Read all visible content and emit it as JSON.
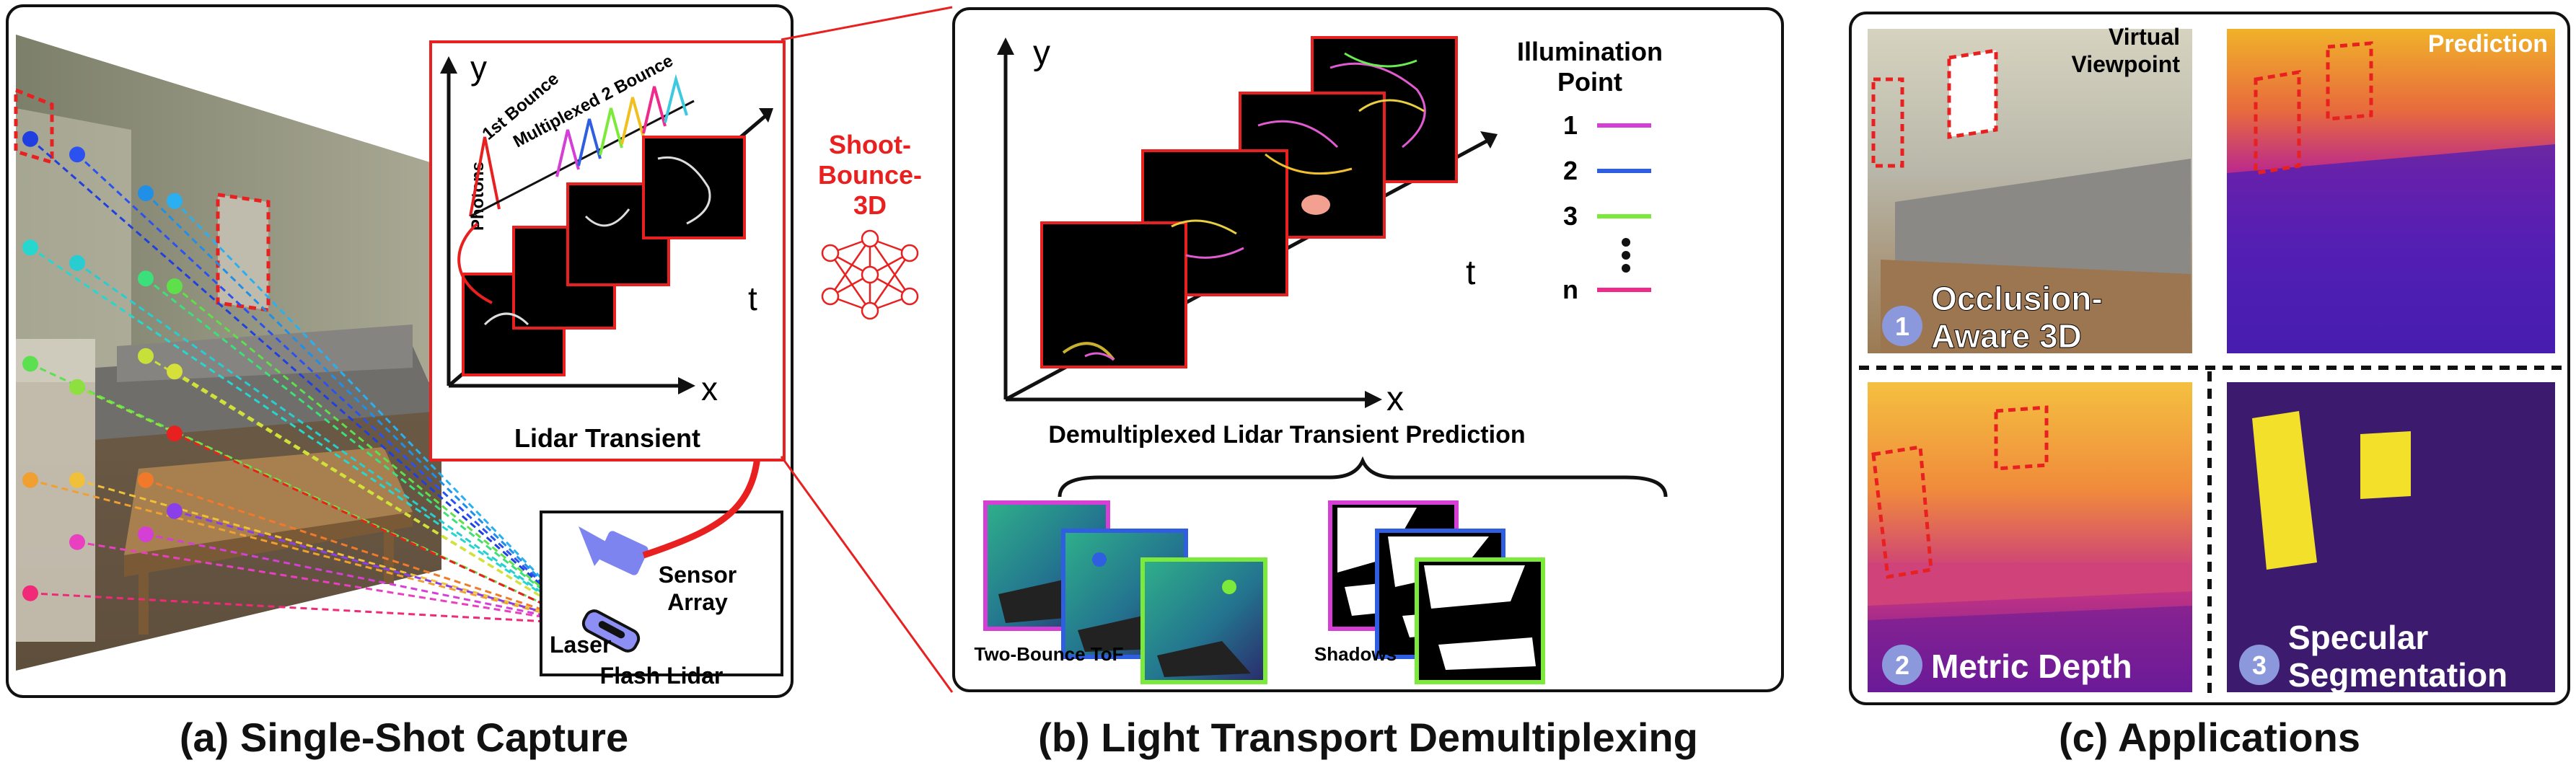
{
  "panel_a": {
    "caption": "(a) Single-Shot Capture",
    "transient_title": "Lidar Transient",
    "axis_y": "y",
    "axis_x": "x",
    "axis_t": "t",
    "photons_label": "Photons",
    "first_bounce": "1st Bounce",
    "multiplexed": "Multiplexed 2 Bounce",
    "flash_lidar": "Flash Lidar",
    "sensor_line1": "Sensor",
    "sensor_line2": "Array",
    "laser": "Laser"
  },
  "network": {
    "line1": "Shoot-",
    "line2": "Bounce-",
    "line3": "3D"
  },
  "panel_b": {
    "caption": "(b) Light Transport Demultiplexing",
    "axis_y": "y",
    "axis_x": "x",
    "axis_t": "t",
    "prediction_title": "Demultiplexed Lidar Transient Prediction",
    "legend_title_1": "Illumination",
    "legend_title_2": "Point",
    "legend": [
      {
        "label": "1",
        "color": "#d63fd6"
      },
      {
        "label": "2",
        "color": "#2f5ee0"
      },
      {
        "label": "3",
        "color": "#7bea3a"
      },
      {
        "label": "n",
        "color": "#ee2a8a"
      }
    ],
    "tof_label": "Two-Bounce ToF",
    "shadows_label": "Shadows"
  },
  "panel_c": {
    "caption": "(c) Applications",
    "virtual_line1": "Virtual",
    "virtual_line2": "Viewpoint",
    "prediction": "Prediction",
    "app1_number": "1",
    "app1_line1": "Occlusion-",
    "app1_line2": "Aware 3D",
    "app2_number": "2",
    "app2_label": "Metric Depth",
    "app3_number": "3",
    "app3_line1": "Specular",
    "app3_line2": "Segmentation"
  },
  "colors": {
    "accent_red": "#e82020",
    "badge": "#8c98dc"
  }
}
